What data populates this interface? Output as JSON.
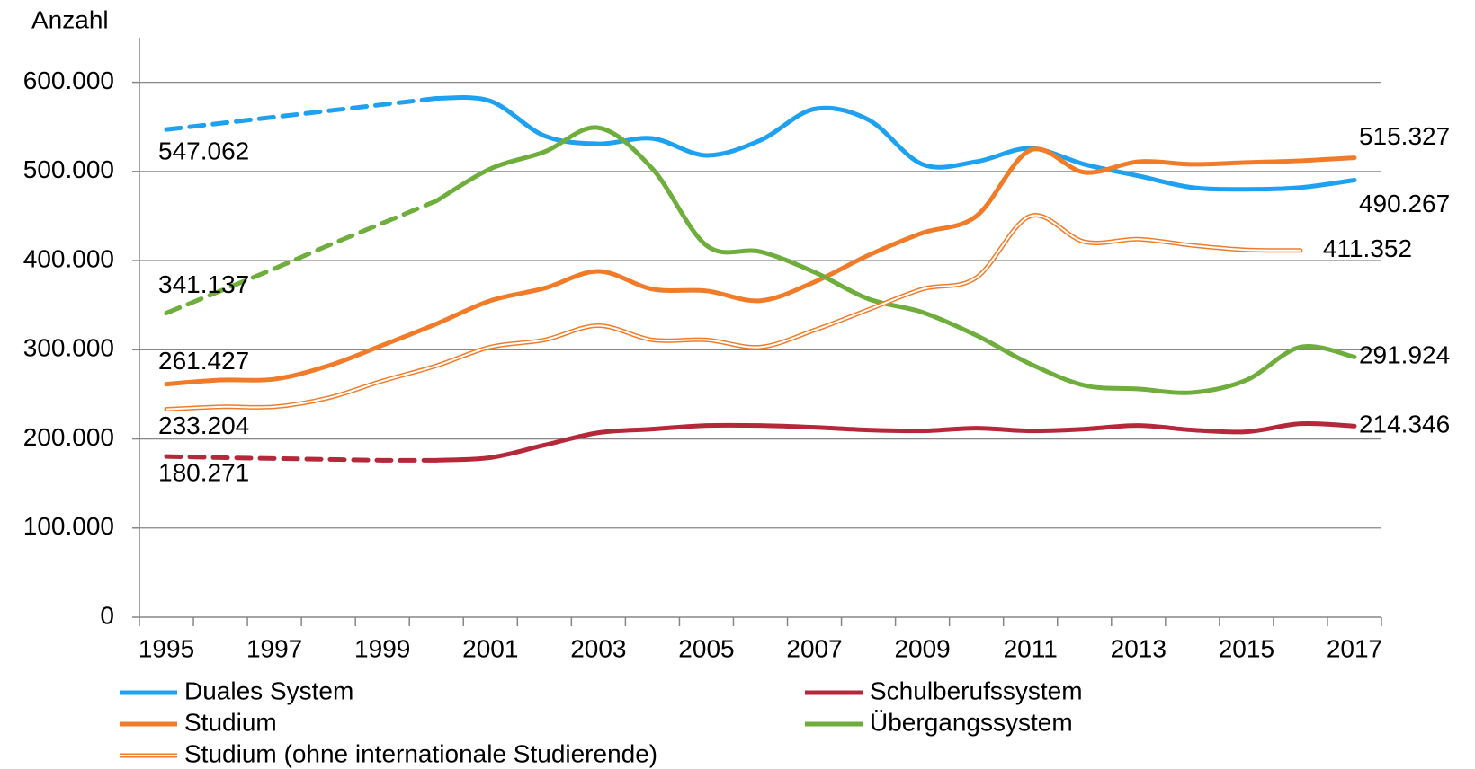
{
  "chart_data": {
    "type": "line",
    "y_label": "Anzahl",
    "x": [
      1995,
      1996,
      1997,
      1998,
      1999,
      2000,
      2001,
      2002,
      2003,
      2004,
      2005,
      2006,
      2007,
      2008,
      2009,
      2010,
      2011,
      2012,
      2013,
      2014,
      2015,
      2016,
      2017
    ],
    "xlim": [
      1994.5,
      2017.5
    ],
    "xticks": [
      1995,
      1997,
      1999,
      2001,
      2003,
      2005,
      2007,
      2009,
      2011,
      2013,
      2015,
      2017
    ],
    "ylim": [
      0,
      650000
    ],
    "yticks": [
      0,
      {
        "value": 100000,
        "label": "100.000"
      },
      {
        "value": 200000,
        "label": "200.000"
      },
      {
        "value": 300000,
        "label": "300.000"
      },
      {
        "value": 400000,
        "label": "400.000"
      },
      {
        "value": 500000,
        "label": "500.000"
      },
      {
        "value": 600000,
        "label": "600.000"
      }
    ],
    "grid": true,
    "series": [
      {
        "name": "Duales System",
        "color": "#1ea1f0",
        "dash_until": 2000,
        "values": [
          547062,
          554000,
          561000,
          568000,
          575000,
          582000,
          579000,
          540000,
          531000,
          537000,
          518000,
          535000,
          570000,
          558000,
          508000,
          511000,
          526000,
          508000,
          495000,
          482000,
          480000,
          482000,
          490267
        ],
        "value_labels": [
          "547.062",
          null,
          null,
          null,
          null,
          null,
          null,
          null,
          null,
          null,
          null,
          null,
          null,
          null,
          null,
          null,
          null,
          null,
          null,
          null,
          null,
          null,
          "490.267"
        ]
      },
      {
        "name": "Schulberufssystem",
        "color": "#b5283a",
        "dash_until": 2000,
        "values": [
          180271,
          179000,
          178000,
          177000,
          176000,
          176000,
          179000,
          193000,
          207000,
          211000,
          215000,
          215000,
          213000,
          210000,
          209000,
          212000,
          209000,
          211000,
          215000,
          210000,
          208000,
          217000,
          214346
        ],
        "value_labels": [
          "180.271",
          null,
          null,
          null,
          null,
          null,
          null,
          null,
          null,
          null,
          null,
          null,
          null,
          null,
          null,
          null,
          null,
          null,
          null,
          null,
          null,
          null,
          "214.346"
        ]
      },
      {
        "name": "Studium",
        "color": "#f07c2a",
        "values": [
          261427,
          266000,
          267000,
          282000,
          305000,
          329000,
          355000,
          369000,
          388000,
          368000,
          366000,
          355000,
          376000,
          406000,
          431000,
          450000,
          524000,
          499000,
          511000,
          508000,
          510000,
          512000,
          515327
        ],
        "value_labels": [
          "261.427",
          null,
          null,
          null,
          null,
          null,
          null,
          null,
          null,
          null,
          null,
          null,
          null,
          null,
          null,
          null,
          null,
          null,
          null,
          null,
          null,
          null,
          "515.327"
        ]
      },
      {
        "name": "Übergangssystem",
        "color": "#6fae3c",
        "dash_until": 2000,
        "values": [
          341137,
          366000,
          391000,
          417000,
          442000,
          467000,
          503000,
          522000,
          549000,
          503000,
          417000,
          410000,
          387000,
          357000,
          342000,
          316000,
          284000,
          260000,
          256000,
          252000,
          266000,
          303000,
          291924
        ],
        "value_labels": [
          "341.137",
          null,
          null,
          null,
          null,
          null,
          null,
          null,
          null,
          null,
          null,
          null,
          null,
          null,
          null,
          null,
          null,
          null,
          null,
          null,
          null,
          null,
          "291.924"
        ]
      },
      {
        "name": "Studium (ohne internationale Studierende)",
        "color": "#f07c2a",
        "double_line": true,
        "values": [
          233204,
          236000,
          236000,
          246000,
          265000,
          282000,
          303000,
          311000,
          327000,
          311000,
          311000,
          303000,
          322000,
          345000,
          368000,
          381000,
          450000,
          421000,
          424000,
          417000,
          412000,
          411352,
          null
        ],
        "value_labels": [
          "233.204",
          null,
          null,
          null,
          null,
          null,
          null,
          null,
          null,
          null,
          null,
          null,
          null,
          null,
          null,
          null,
          null,
          null,
          null,
          null,
          null,
          "411.352",
          null
        ]
      }
    ]
  }
}
